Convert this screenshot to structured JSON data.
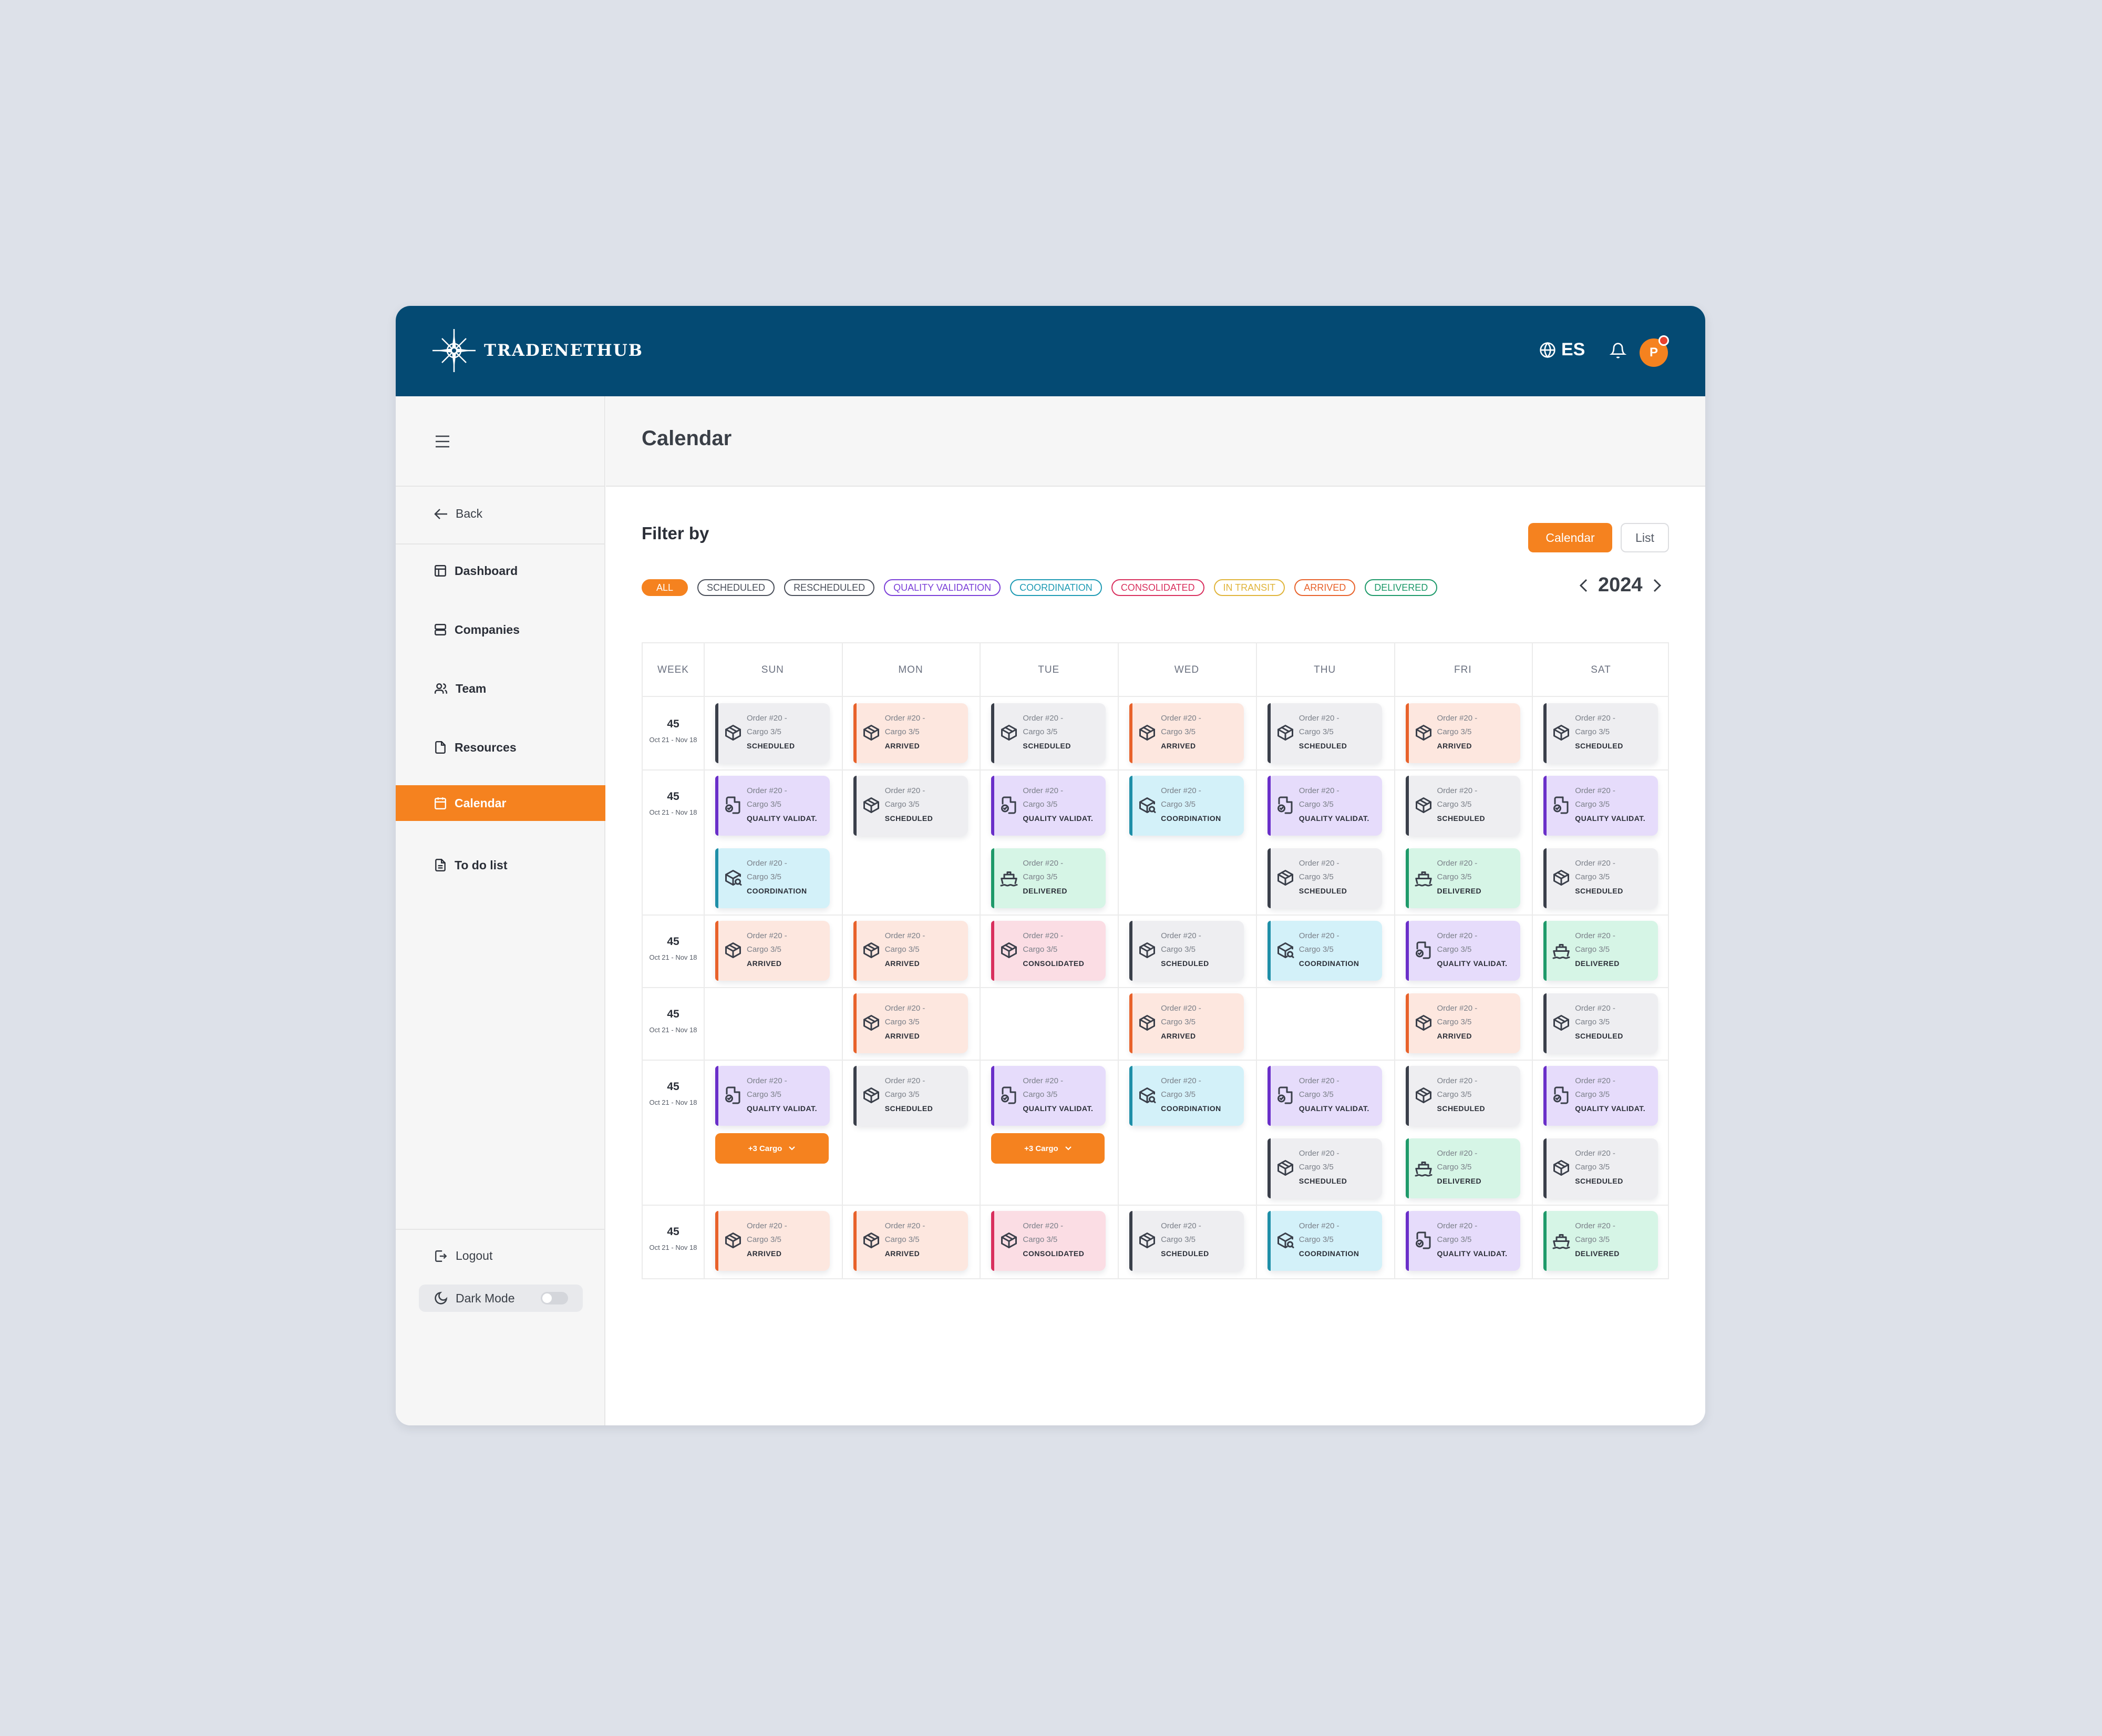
{
  "brand": {
    "name": "TRADENETHUB"
  },
  "header": {
    "language": "ES",
    "avatar_initial": "P"
  },
  "sidebar": {
    "back_label": "Back",
    "items": [
      {
        "label": "Dashboard",
        "icon": "layout-icon"
      },
      {
        "label": "Companies",
        "icon": "server-icon"
      },
      {
        "label": "Team",
        "icon": "users-icon"
      },
      {
        "label": "Resources",
        "icon": "file-icon"
      },
      {
        "label": "Calendar",
        "icon": "calendar-icon",
        "active": true
      },
      {
        "label": "To do list",
        "icon": "file-text-icon"
      }
    ],
    "logout_label": "Logout",
    "dark_mode_label": "Dark Mode",
    "dark_mode_on": false
  },
  "page": {
    "title": "Calendar"
  },
  "filter": {
    "title": "Filter by",
    "view_calendar": "Calendar",
    "view_list": "List",
    "chips": [
      {
        "label": "ALL",
        "color": "#f5821f",
        "selected": true
      },
      {
        "label": "SCHEDULED",
        "color": "#4a4f5a"
      },
      {
        "label": "RESCHEDULED",
        "color": "#4a4f5a"
      },
      {
        "label": "QUALITY VALIDATION",
        "color": "#7b3fd8"
      },
      {
        "label": "COORDINATION",
        "color": "#1f9bb4"
      },
      {
        "label": "CONSOLIDATED",
        "color": "#d9305e"
      },
      {
        "label": "IN TRANSIT",
        "color": "#e0b43a"
      },
      {
        "label": "ARRIVED",
        "color": "#e8622b"
      },
      {
        "label": "DELIVERED",
        "color": "#1e9a6a"
      }
    ],
    "year": "2024"
  },
  "calendar": {
    "columns": [
      "WEEK",
      "SUN",
      "MON",
      "TUE",
      "WED",
      "THU",
      "FRI",
      "SAT"
    ],
    "card_line1": "Order #20 -",
    "card_line2": "Cargo 3/5",
    "more_label": "+3 Cargo",
    "status_styles": {
      "SCHEDULED": {
        "bg": "#eeeef1",
        "bar": "#3a3f4a",
        "icon": "package-icon"
      },
      "ARRIVED": {
        "bg": "#fde7df",
        "bar": "#e8622b",
        "icon": "package-icon"
      },
      "QUALITY VALIDAT.": {
        "bg": "#e6dcfb",
        "bar": "#6a2fc9",
        "icon": "file-check-icon"
      },
      "COORDINATION": {
        "bg": "#d3f1f9",
        "bar": "#1f8fa8",
        "icon": "package-search-icon"
      },
      "DELIVERED": {
        "bg": "#d6f5e6",
        "bar": "#1e9a6a",
        "icon": "ship-icon"
      },
      "CONSOLIDATED": {
        "bg": "#fbdde4",
        "bar": "#d9305e",
        "icon": "package-icon"
      }
    },
    "weeks": [
      {
        "num": "45",
        "range": "Oct 21 - Nov 18",
        "days": [
          [
            "SCHEDULED"
          ],
          [
            "ARRIVED"
          ],
          [
            "SCHEDULED"
          ],
          [
            "ARRIVED"
          ],
          [
            "SCHEDULED"
          ],
          [
            "ARRIVED"
          ],
          [
            "SCHEDULED"
          ]
        ]
      },
      {
        "num": "45",
        "range": "Oct 21 - Nov 18",
        "days": [
          [
            "QUALITY VALIDAT.",
            "COORDINATION"
          ],
          [
            "SCHEDULED"
          ],
          [
            "QUALITY VALIDAT.",
            "DELIVERED"
          ],
          [
            "COORDINATION"
          ],
          [
            "QUALITY VALIDAT.",
            "SCHEDULED"
          ],
          [
            "SCHEDULED",
            "DELIVERED"
          ],
          [
            "QUALITY VALIDAT.",
            "SCHEDULED"
          ]
        ]
      },
      {
        "num": "45",
        "range": "Oct 21 - Nov 18",
        "days": [
          [
            "ARRIVED"
          ],
          [
            "ARRIVED"
          ],
          [
            "CONSOLIDATED"
          ],
          [
            "SCHEDULED"
          ],
          [
            "COORDINATION"
          ],
          [
            "QUALITY VALIDAT."
          ],
          [
            "DELIVERED"
          ]
        ]
      },
      {
        "num": "45",
        "range": "Oct 21 - Nov 18",
        "days": [
          [],
          [
            "ARRIVED"
          ],
          [],
          [
            "ARRIVED"
          ],
          [],
          [
            "ARRIVED"
          ],
          [
            "SCHEDULED"
          ]
        ]
      },
      {
        "num": "45",
        "range": "Oct 21 - Nov 18",
        "days": [
          [
            "QUALITY VALIDAT.",
            "+MORE"
          ],
          [
            "SCHEDULED"
          ],
          [
            "QUALITY VALIDAT.",
            "+MORE"
          ],
          [
            "COORDINATION"
          ],
          [
            "QUALITY VALIDAT.",
            "SCHEDULED"
          ],
          [
            "SCHEDULED",
            "DELIVERED"
          ],
          [
            "QUALITY VALIDAT.",
            "SCHEDULED"
          ]
        ]
      },
      {
        "num": "45",
        "range": "Oct 21 - Nov 18",
        "days": [
          [
            "ARRIVED"
          ],
          [
            "ARRIVED"
          ],
          [
            "CONSOLIDATED"
          ],
          [
            "SCHEDULED"
          ],
          [
            "COORDINATION"
          ],
          [
            "QUALITY VALIDAT."
          ],
          [
            "DELIVERED"
          ]
        ]
      }
    ]
  }
}
